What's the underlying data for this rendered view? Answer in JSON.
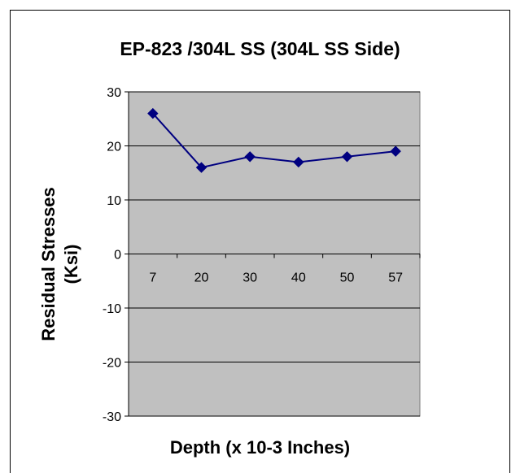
{
  "chart_data": {
    "type": "line",
    "title": "EP-823 /304L SS (304L SS Side)",
    "xlabel": "Depth (x 10-3 Inches)",
    "ylabel_lines": [
      "Residual Stresses",
      "(Ksi)"
    ],
    "categories": [
      "7",
      "20",
      "30",
      "40",
      "50",
      "57"
    ],
    "series": [
      {
        "values": [
          26,
          16,
          18,
          17,
          18,
          19
        ]
      }
    ],
    "ylim": [
      -30,
      30
    ],
    "yticks": [
      -30,
      -20,
      -10,
      0,
      10,
      20,
      30
    ],
    "grid": true,
    "legend": "none",
    "colors": {
      "plot_background": "#C0C0C0",
      "series": "#000080",
      "gridline": "#000000"
    }
  }
}
